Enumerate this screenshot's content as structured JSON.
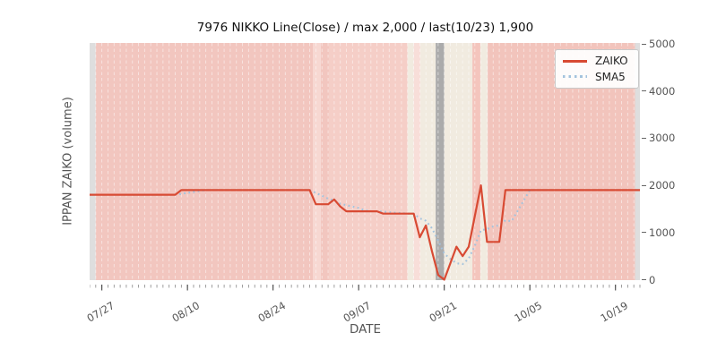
{
  "title": "7976 NIKKO Line(Close) / max 2,000 / last(10/23) 1,900",
  "axes": {
    "x_label": "DATE",
    "y_label": "IPPAN ZAIKO (volume)",
    "y_ticks": [
      {
        "label": "0",
        "value": 0
      },
      {
        "label": "1000",
        "value": 1000
      },
      {
        "label": "2000",
        "value": 2000
      },
      {
        "label": "3000",
        "value": 3000
      },
      {
        "label": "4000",
        "value": 4000
      },
      {
        "label": "5000",
        "value": 5000
      }
    ],
    "x_ticks": [
      {
        "label": "07/27",
        "day": 2
      },
      {
        "label": "08/10",
        "day": 16
      },
      {
        "label": "08/24",
        "day": 30
      },
      {
        "label": "09/07",
        "day": 44
      },
      {
        "label": "09/21",
        "day": 58
      },
      {
        "label": "10/05",
        "day": 72
      },
      {
        "label": "10/19",
        "day": 86
      }
    ]
  },
  "legend": {
    "position": "upper right",
    "items": [
      {
        "label": "ZAIKO",
        "color": "#d84a33",
        "style": "solid"
      },
      {
        "label": "SMA5",
        "color": "#a4c3dd",
        "style": "dotted"
      }
    ]
  },
  "chart_data": {
    "type": "line",
    "title": "7976 NIKKO Line(Close) / max 2,000 / last(10/23) 1,900",
    "xlabel": "DATE",
    "ylabel": "IPPAN ZAIKO (volume)",
    "ylim": [
      0,
      5000
    ],
    "x_range_days": 90,
    "grid": "white dashed vertical line per day",
    "legend_position": "upper right",
    "max_value": 2000,
    "last_date": "10/23",
    "last_value": 1900,
    "series": [
      {
        "name": "ZAIKO",
        "color": "#d84a33",
        "style": "solid",
        "points": [
          [
            "07/25",
            1800
          ],
          [
            "07/26",
            1800
          ],
          [
            "07/27",
            1800
          ],
          [
            "07/28",
            1800
          ],
          [
            "07/29",
            1800
          ],
          [
            "07/30",
            1800
          ],
          [
            "07/31",
            1800
          ],
          [
            "08/01",
            1800
          ],
          [
            "08/02",
            1800
          ],
          [
            "08/03",
            1800
          ],
          [
            "08/04",
            1800
          ],
          [
            "08/05",
            1800
          ],
          [
            "08/06",
            1800
          ],
          [
            "08/07",
            1800
          ],
          [
            "08/08",
            1800
          ],
          [
            "08/09",
            1900
          ],
          [
            "08/10",
            1900
          ],
          [
            "08/11",
            1900
          ],
          [
            "08/12",
            1900
          ],
          [
            "08/13",
            1900
          ],
          [
            "08/14",
            1900
          ],
          [
            "08/15",
            1900
          ],
          [
            "08/16",
            1900
          ],
          [
            "08/17",
            1900
          ],
          [
            "08/18",
            1900
          ],
          [
            "08/19",
            1900
          ],
          [
            "08/20",
            1900
          ],
          [
            "08/21",
            1900
          ],
          [
            "08/22",
            1900
          ],
          [
            "08/23",
            1900
          ],
          [
            "08/24",
            1900
          ],
          [
            "08/25",
            1900
          ],
          [
            "08/26",
            1900
          ],
          [
            "08/27",
            1900
          ],
          [
            "08/28",
            1900
          ],
          [
            "08/29",
            1900
          ],
          [
            "08/30",
            1900
          ],
          [
            "08/31",
            1600
          ],
          [
            "09/01",
            1600
          ],
          [
            "09/02",
            1600
          ],
          [
            "09/03",
            1700
          ],
          [
            "09/04",
            1550
          ],
          [
            "09/05",
            1450
          ],
          [
            "09/06",
            1450
          ],
          [
            "09/07",
            1450
          ],
          [
            "09/08",
            1450
          ],
          [
            "09/09",
            1450
          ],
          [
            "09/10",
            1450
          ],
          [
            "09/11",
            1400
          ],
          [
            "09/12",
            1400
          ],
          [
            "09/13",
            1400
          ],
          [
            "09/14",
            1400
          ],
          [
            "09/15",
            1400
          ],
          [
            "09/16",
            1400
          ],
          [
            "09/17",
            900
          ],
          [
            "09/18",
            1150
          ],
          [
            "09/19",
            600
          ],
          [
            "09/20",
            100
          ],
          [
            "09/21",
            0
          ],
          [
            "09/22",
            350
          ],
          [
            "09/23",
            700
          ],
          [
            "09/24",
            500
          ],
          [
            "09/25",
            700
          ],
          [
            "09/26",
            1350
          ],
          [
            "09/27",
            2000
          ],
          [
            "09/28",
            800
          ],
          [
            "09/29",
            800
          ],
          [
            "09/30",
            800
          ],
          [
            "10/01",
            1900
          ],
          [
            "10/02",
            1900
          ],
          [
            "10/03",
            1900
          ],
          [
            "10/04",
            1900
          ],
          [
            "10/05",
            1900
          ],
          [
            "10/06",
            1900
          ],
          [
            "10/07",
            1900
          ],
          [
            "10/08",
            1900
          ],
          [
            "10/09",
            1900
          ],
          [
            "10/10",
            1900
          ],
          [
            "10/11",
            1900
          ],
          [
            "10/12",
            1900
          ],
          [
            "10/13",
            1900
          ],
          [
            "10/14",
            1900
          ],
          [
            "10/15",
            1900
          ],
          [
            "10/16",
            1900
          ],
          [
            "10/17",
            1900
          ],
          [
            "10/18",
            1900
          ],
          [
            "10/19",
            1900
          ],
          [
            "10/20",
            1900
          ],
          [
            "10/21",
            1900
          ],
          [
            "10/22",
            1900
          ],
          [
            "10/23",
            1900
          ]
        ]
      },
      {
        "name": "SMA5",
        "color": "#a4c3dd",
        "style": "dotted",
        "derived": "5-point moving average of ZAIKO"
      }
    ],
    "background_bands": [
      {
        "from": 0,
        "to": 1,
        "color": "#dedede"
      },
      {
        "from": 1,
        "to": 36.5,
        "color": "#f2c6bf"
      },
      {
        "from": 36.5,
        "to": 37.8,
        "color": "#f7d8d2"
      },
      {
        "from": 37.8,
        "to": 39.2,
        "color": "#f2c6bf"
      },
      {
        "from": 39.2,
        "to": 52.0,
        "color": "#f5cec7"
      },
      {
        "from": 52.0,
        "to": 53.0,
        "color": "#f1ebe0"
      },
      {
        "from": 53.0,
        "to": 54.1,
        "color": "#f8ded9"
      },
      {
        "from": 54.1,
        "to": 56.6,
        "color": "#f1ebe0"
      },
      {
        "from": 56.6,
        "to": 58.0,
        "color": "#ababab"
      },
      {
        "from": 58.0,
        "to": 62.6,
        "color": "#f1ebe0"
      },
      {
        "from": 62.6,
        "to": 63.9,
        "color": "#f4c5bd"
      },
      {
        "from": 63.9,
        "to": 65.1,
        "color": "#f1ebe0"
      },
      {
        "from": 65.1,
        "to": 89.2,
        "color": "#f2c4bc"
      },
      {
        "from": 89.2,
        "to": 90,
        "color": "#dedede"
      }
    ]
  }
}
